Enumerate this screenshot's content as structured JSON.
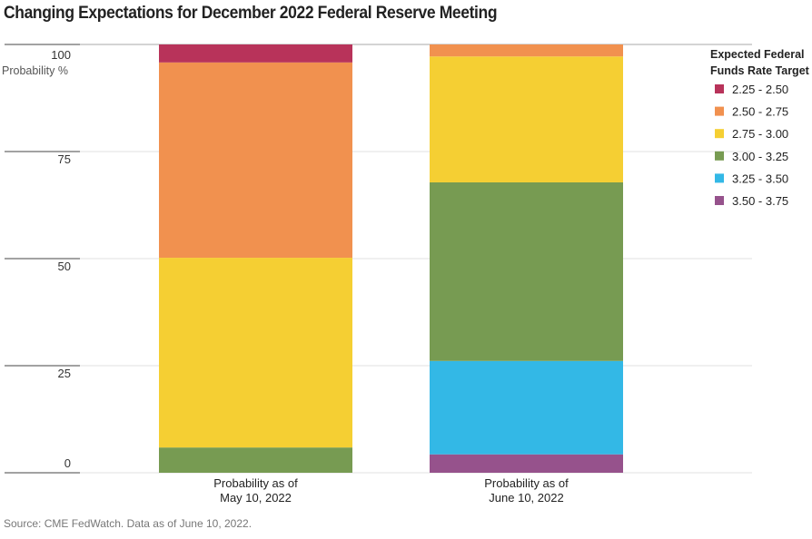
{
  "chart_data": {
    "type": "bar",
    "stacked": true,
    "title": "Changing Expectations for December 2022 Federal Reserve Meeting",
    "ylabel": "Probability %",
    "ylim": [
      0,
      100
    ],
    "yticks": [
      0,
      25,
      50,
      75,
      100
    ],
    "categories": [
      [
        "Probability as of",
        "May 10, 2022"
      ],
      [
        "Probability as of",
        "June 10, 2022"
      ]
    ],
    "legend_title": [
      "Expected Federal",
      "Funds Rate Target"
    ],
    "legend_position": "right",
    "series": [
      {
        "name": "3.50 - 3.75",
        "color": "#96528c",
        "values": [
          0,
          4.3
        ]
      },
      {
        "name": "3.25 - 3.50",
        "color": "#33b8e6",
        "values": [
          0,
          21.8
        ]
      },
      {
        "name": "3.00 - 3.25",
        "color": "#779b52",
        "values": [
          5.9,
          41.7
        ]
      },
      {
        "name": "2.75 - 3.00",
        "color": "#f5cf33",
        "values": [
          44.3,
          29.4
        ]
      },
      {
        "name": "2.50 - 2.75",
        "color": "#f1914f",
        "values": [
          45.6,
          2.8
        ]
      },
      {
        "name": "2.25 - 2.50",
        "color": "#b8335a",
        "values": [
          4.2,
          0
        ]
      }
    ],
    "source": "Source: CME FedWatch. Data as of June 10, 2022."
  }
}
